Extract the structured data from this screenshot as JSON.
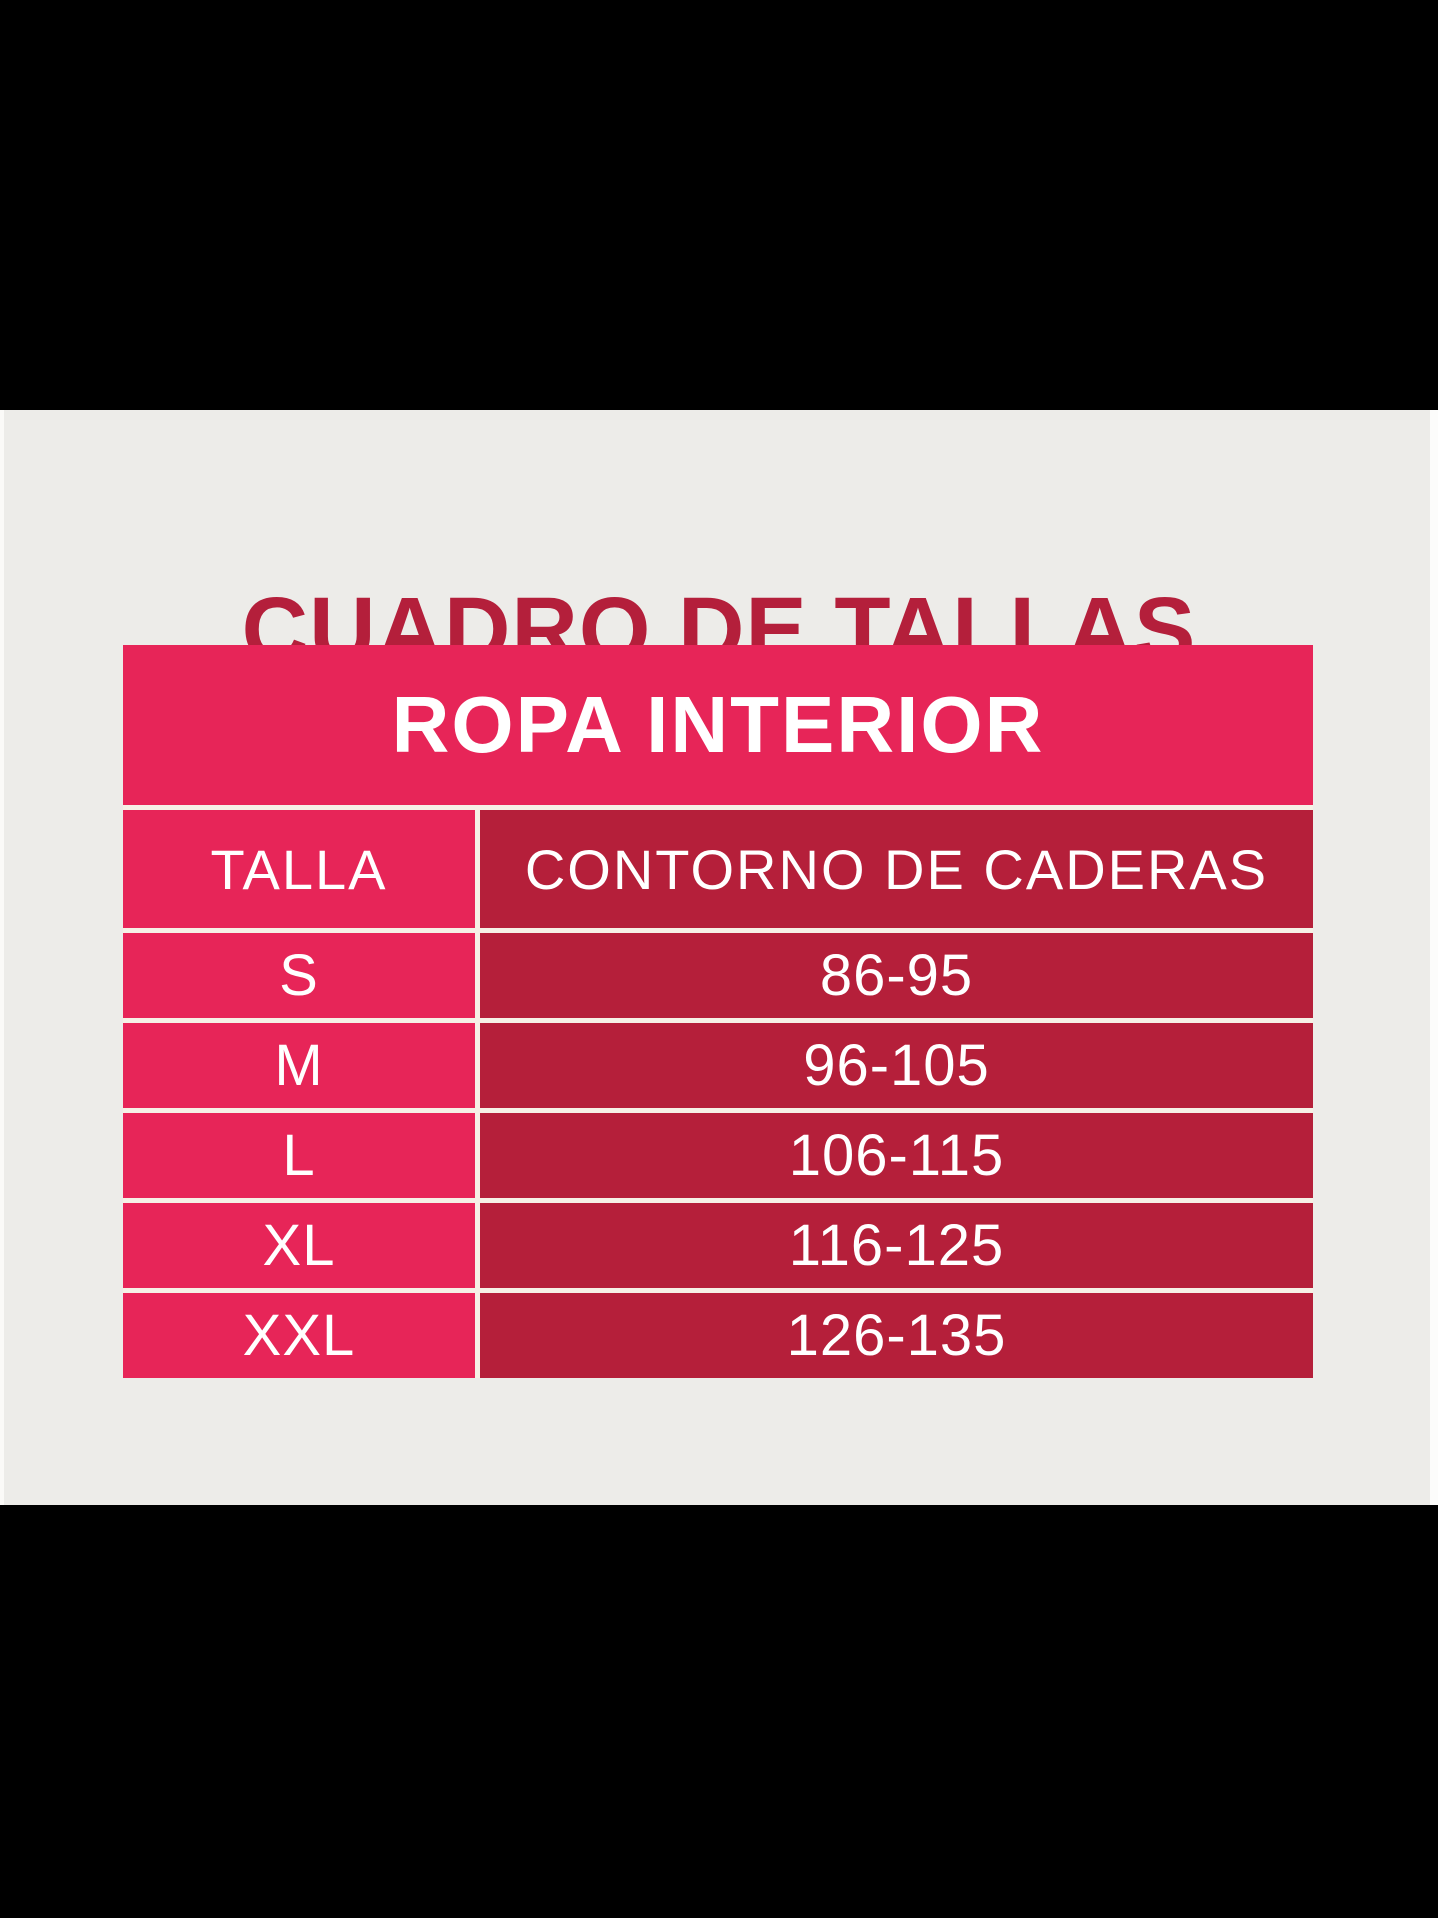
{
  "chart_data": {
    "type": "table",
    "title": "CUADRO DE TALLAS",
    "header": "ROPA INTERIOR",
    "columns": [
      "TALLA",
      "CONTORNO DE CADERAS"
    ],
    "rows": [
      {
        "talla": "S",
        "contorno_de_caderas": "86-95"
      },
      {
        "talla": "M",
        "contorno_de_caderas": "96-105"
      },
      {
        "talla": "L",
        "contorno_de_caderas": "106-115"
      },
      {
        "talla": "XL",
        "contorno_de_caderas": "116-125"
      },
      {
        "talla": "XXL",
        "contorno_de_caderas": "126-135"
      }
    ],
    "layout_hints": {
      "unit_note": "hip measurement ranges shown as printed, no units displayed"
    }
  },
  "colors": {
    "pink": "#E72558",
    "dark_red": "#B51F3A",
    "title_red": "#B41F3B",
    "content_background": "#EDECE9",
    "divider": "#F6F1E6",
    "letterbox": "#000000",
    "text_white": "#FFFFFF"
  }
}
